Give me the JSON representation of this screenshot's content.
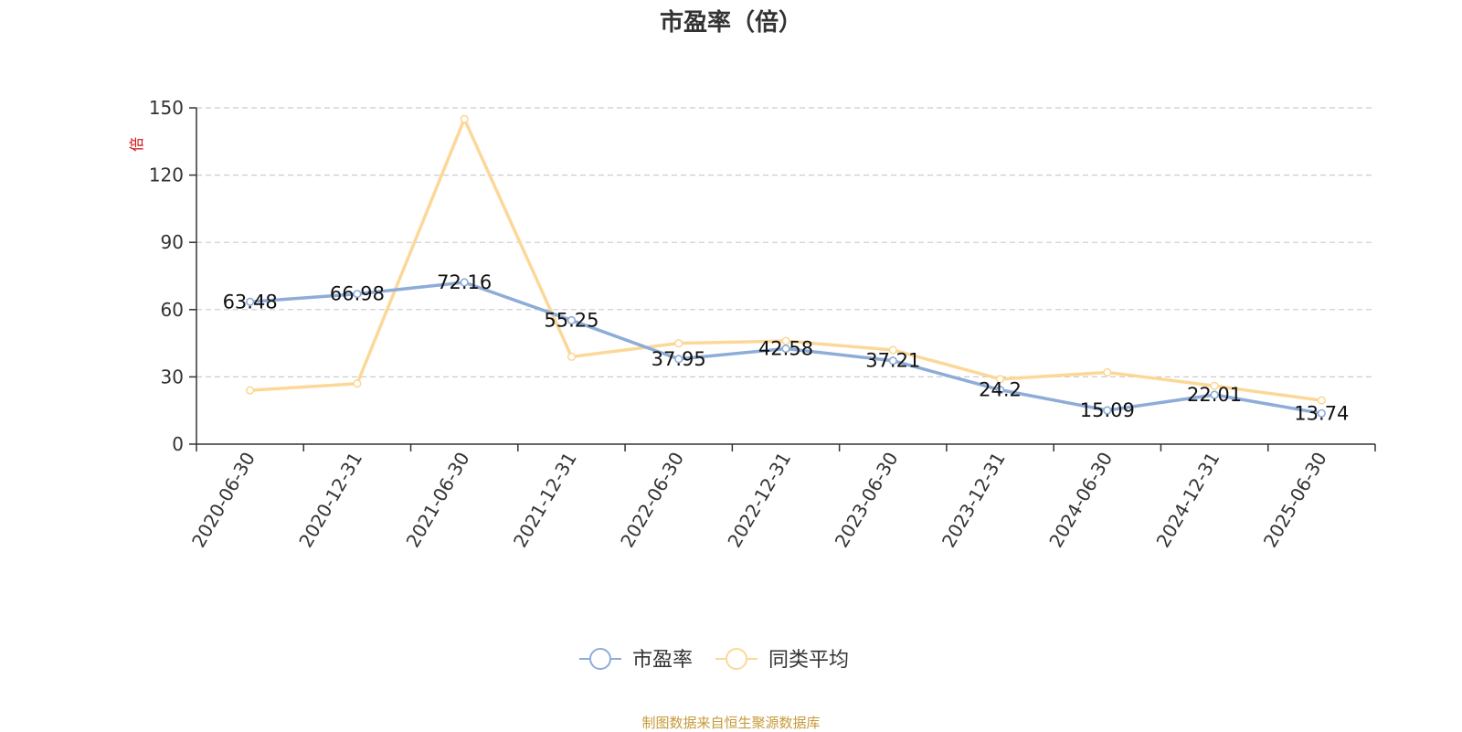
{
  "chart_data": {
    "type": "line",
    "title": "市盈率（倍）",
    "ylabel": "倍",
    "xlabel": "",
    "ylim": [
      0,
      150
    ],
    "yticks": [
      0,
      30,
      60,
      90,
      120,
      150
    ],
    "grid": true,
    "legend_position": "bottom-center",
    "categories": [
      "2020-06-30",
      "2020-12-31",
      "2021-06-30",
      "2021-12-31",
      "2022-06-30",
      "2022-12-31",
      "2023-06-30",
      "2023-12-31",
      "2024-06-30",
      "2024-12-31",
      "2025-06-30"
    ],
    "series": [
      {
        "name": "市盈率",
        "color": "#8eacd8",
        "values": [
          63.48,
          66.98,
          72.16,
          55.25,
          37.95,
          42.58,
          37.21,
          24.2,
          15.09,
          22.01,
          13.74
        ],
        "labels": [
          "63.48",
          "66.98",
          "72.16",
          "55.25",
          "37.95",
          "42.58",
          "37.21",
          "24.2",
          "15.09",
          "22.01",
          "13.74"
        ]
      },
      {
        "name": "同类平均",
        "color": "#fcd898",
        "values": [
          24,
          27,
          145,
          39,
          45,
          46,
          42,
          29,
          32,
          26,
          19.5
        ]
      }
    ],
    "source": "制图数据来自恒生聚源数据库"
  }
}
